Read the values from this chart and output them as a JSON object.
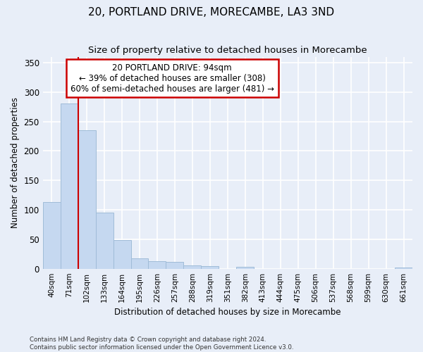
{
  "title": "20, PORTLAND DRIVE, MORECAMBE, LA3 3ND",
  "subtitle": "Size of property relative to detached houses in Morecambe",
  "xlabel": "Distribution of detached houses by size in Morecambe",
  "ylabel": "Number of detached properties",
  "categories": [
    "40sqm",
    "71sqm",
    "102sqm",
    "133sqm",
    "164sqm",
    "195sqm",
    "226sqm",
    "257sqm",
    "288sqm",
    "319sqm",
    "351sqm",
    "382sqm",
    "413sqm",
    "444sqm",
    "475sqm",
    "506sqm",
    "537sqm",
    "568sqm",
    "599sqm",
    "630sqm",
    "661sqm"
  ],
  "values": [
    113,
    280,
    235,
    95,
    49,
    18,
    13,
    11,
    5,
    4,
    0,
    3,
    0,
    0,
    0,
    0,
    0,
    0,
    0,
    0,
    2
  ],
  "bar_color": "#c5d8f0",
  "bar_edge_color": "#a0bcd8",
  "annotation_text_line1": "20 PORTLAND DRIVE: 94sqm",
  "annotation_text_line2": "← 39% of detached houses are smaller (308)",
  "annotation_text_line3": "60% of semi-detached houses are larger (481) →",
  "annotation_box_color": "#ffffff",
  "annotation_box_edge": "#cc0000",
  "vline_color": "#cc0000",
  "ylim": [
    0,
    360
  ],
  "yticks": [
    0,
    50,
    100,
    150,
    200,
    250,
    300,
    350
  ],
  "background_color": "#e8eef8",
  "grid_color": "#ffffff",
  "title_fontsize": 11,
  "subtitle_fontsize": 9.5,
  "footer_line1": "Contains HM Land Registry data © Crown copyright and database right 2024.",
  "footer_line2": "Contains public sector information licensed under the Open Government Licence v3.0."
}
